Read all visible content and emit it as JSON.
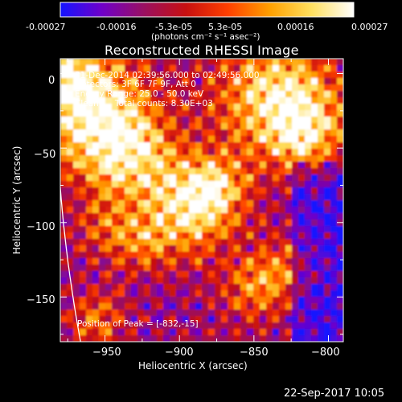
{
  "colorbar": {
    "min": -0.00027,
    "max": 0.00027,
    "tick_labels": [
      "-0.00027",
      "-0.00016",
      "-5.3e-05",
      "5.3e-05",
      "0.00016",
      "0.00027"
    ],
    "unit_label": "(photons cm⁻² s⁻¹ asec⁻²)",
    "colors": [
      "#1414ff",
      "#7000c8",
      "#9a1060",
      "#c81010",
      "#ff4000",
      "#ffa000",
      "#ffe060",
      "#ffffff"
    ]
  },
  "image": {
    "title": "Reconstructed RHESSI Image",
    "info_lines": [
      "31-Dec-2014 02:39:56.000 to 02:49:56.000",
      "Detectors: 3F 6F 7F 9F, Att 0",
      "Energy Range: 25.0 - 50.0 keV",
      "Clean      Total counts: 8.30E+03"
    ],
    "peak_label": "Position of Peak = [-832,-15]",
    "limb_color": "#ffffff"
  },
  "chart_data": {
    "type": "heatmap",
    "title": "Reconstructed RHESSI Image",
    "xlabel": "Heliocentric X (arcsec)",
    "ylabel": "Heliocentric Y (arcsec)",
    "xlim": [
      -980,
      -790
    ],
    "ylim": [
      -180,
      10
    ],
    "x_ticks": [
      -950,
      -900,
      -850,
      -800
    ],
    "y_ticks": [
      0,
      -50,
      -100,
      -150
    ],
    "x_tick_labels": [
      "−950",
      "−900",
      "−850",
      "−800"
    ],
    "y_tick_labels": [
      "0",
      "−50",
      "−100",
      "−150"
    ],
    "peak_position": [
      -832,
      -15
    ]
  },
  "footer": {
    "timestamp": "22-Sep-2017 10:05"
  }
}
